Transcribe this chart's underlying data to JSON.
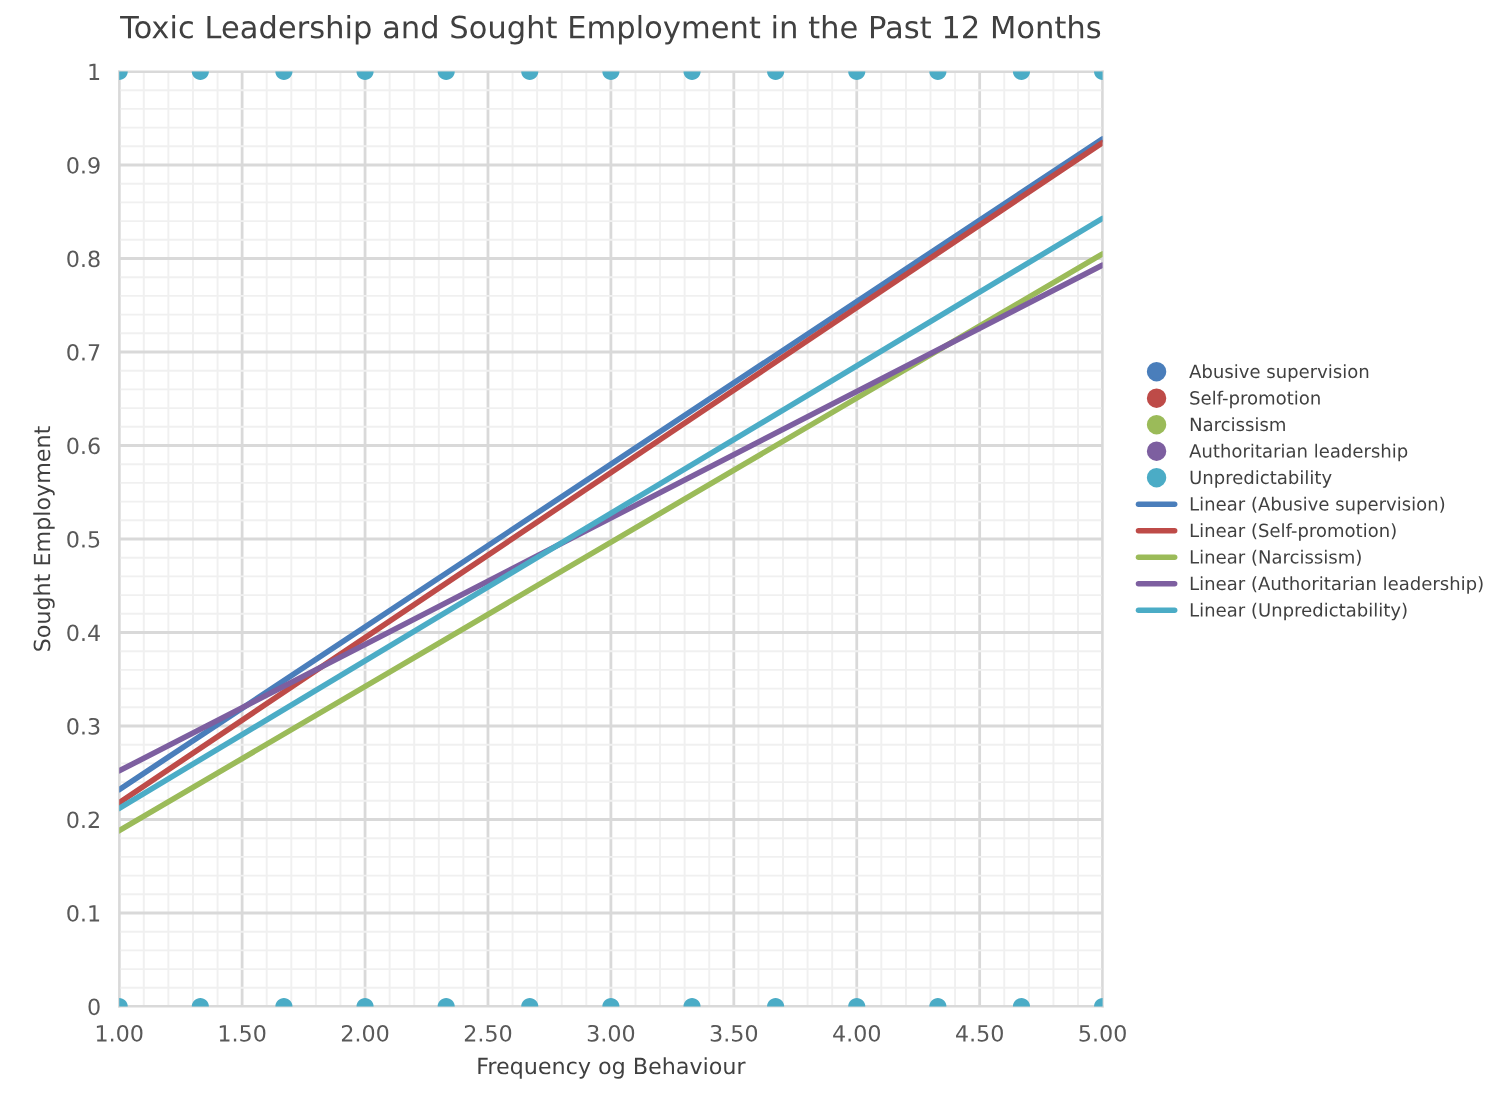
{
  "chart_data": {
    "type": "scatter",
    "title": "Toxic Leadership and Sought Employment in the Past 12 Months",
    "xlabel": "Frequency og Behaviour",
    "ylabel": "Sought Employment",
    "xlim": [
      1,
      5
    ],
    "ylim": [
      0,
      1
    ],
    "xticks": [
      {
        "value": 1,
        "label": "1.00"
      },
      {
        "value": 1.5,
        "label": "1.50"
      },
      {
        "value": 2,
        "label": "2.00"
      },
      {
        "value": 2.5,
        "label": "2.50"
      },
      {
        "value": 3,
        "label": "3.00"
      },
      {
        "value": 3.5,
        "label": "3.50"
      },
      {
        "value": 4,
        "label": "4.00"
      },
      {
        "value": 4.5,
        "label": "4.50"
      },
      {
        "value": 5,
        "label": "5.00"
      }
    ],
    "yticks": [
      0,
      0.1,
      0.2,
      0.3,
      0.4,
      0.5,
      0.6,
      0.7,
      0.8,
      0.9,
      1
    ],
    "grid": true,
    "legend": "right",
    "series": [
      {
        "name": "Abusive supervision",
        "color": "#4a7ebb",
        "marker": "circle"
      },
      {
        "name": "Self-promotion",
        "color": "#be4b48",
        "marker": "circle"
      },
      {
        "name": "Narcissism",
        "color": "#9bbb59",
        "marker": "circle"
      },
      {
        "name": "Authoritarian leadership",
        "color": "#7d5fa0",
        "marker": "circle"
      },
      {
        "name": "Unpredictability",
        "color": "#4bacc6",
        "marker": "circle",
        "x": [
          1,
          1.33,
          1.67,
          2,
          2.33,
          2.67,
          3,
          3.33,
          3.67,
          4,
          4.33,
          4.67,
          5,
          1,
          1.33,
          1.67,
          2,
          2.33,
          2.67,
          3,
          3.33,
          3.67,
          4,
          4.33,
          4.67,
          5
        ],
        "values": [
          1,
          1,
          1,
          1,
          1,
          1,
          1,
          1,
          1,
          1,
          1,
          1,
          1,
          0,
          0,
          0,
          0,
          0,
          0,
          0,
          0,
          0,
          0,
          0,
          0,
          0
        ]
      },
      {
        "name": "Linear (Abusive supervision)",
        "type": "line",
        "color": "#4a7ebb",
        "x": [
          1,
          5
        ],
        "values": [
          0.232,
          0.928
        ]
      },
      {
        "name": "Linear (Self-promotion)",
        "type": "line",
        "color": "#be4b48",
        "x": [
          1,
          5
        ],
        "values": [
          0.218,
          0.924
        ]
      },
      {
        "name": "Linear (Narcissism)",
        "type": "line",
        "color": "#9bbb59",
        "x": [
          1,
          5
        ],
        "values": [
          0.188,
          0.805
        ]
      },
      {
        "name": "Linear (Authoritarian leadership)",
        "type": "line",
        "color": "#7d5fa0",
        "x": [
          1,
          5
        ],
        "values": [
          0.252,
          0.793
        ]
      },
      {
        "name": "Linear (Unpredictability)",
        "type": "line",
        "color": "#4bacc6",
        "x": [
          1,
          5
        ],
        "values": [
          0.212,
          0.843
        ]
      }
    ]
  }
}
